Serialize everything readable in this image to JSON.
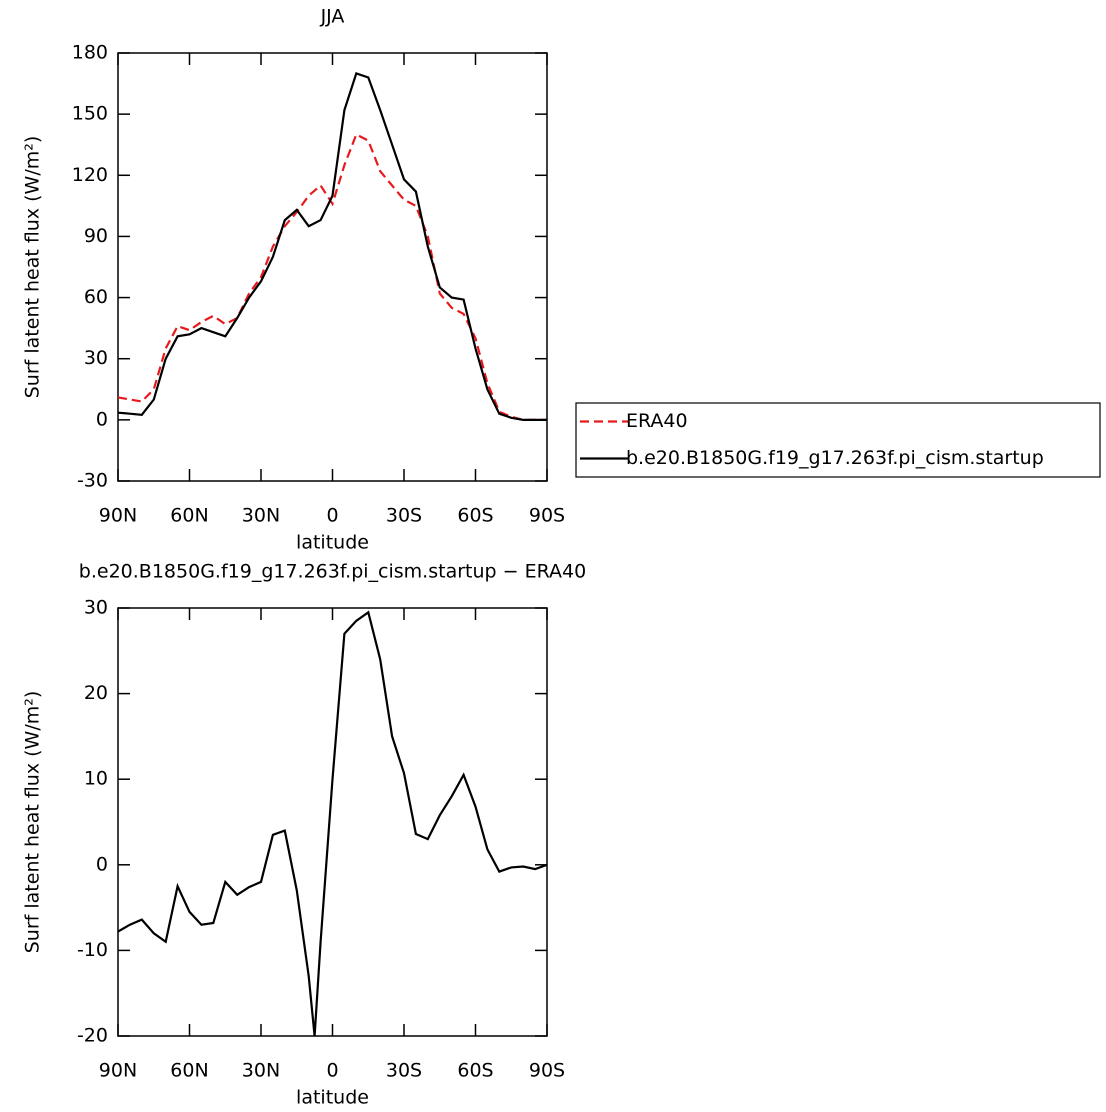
{
  "chart_data": [
    {
      "type": "line",
      "title": "JJA",
      "xlabel": "latitude",
      "ylabel": "Surf latent heat flux (W/m²)",
      "x": [
        90,
        85,
        80,
        75,
        70,
        65,
        60,
        55,
        50,
        45,
        40,
        35,
        30,
        25,
        20,
        15,
        10,
        5,
        0,
        -5,
        -10,
        -15,
        -20,
        -25,
        -30,
        -35,
        -40,
        -45,
        -50,
        -55,
        -60,
        -65,
        -70,
        -75,
        -80,
        -85,
        -90
      ],
      "series": [
        {
          "name": "ERA40",
          "color": "#e8191d",
          "dash": "dashed",
          "values": [
            11,
            10,
            9,
            15,
            35,
            46,
            44,
            48,
            51,
            47,
            50,
            62,
            70,
            85,
            95,
            102,
            110,
            115,
            106,
            125,
            140,
            137,
            122,
            115,
            108,
            105,
            90,
            62,
            55,
            52,
            40,
            18,
            4,
            1.5,
            0,
            0,
            0
          ]
        },
        {
          "name": "b.e20.B1850G.f19_g17.263f.pi_cism.startup",
          "color": "#000000",
          "dash": "solid",
          "values": [
            3.5,
            3,
            2.5,
            10,
            30,
            41,
            42,
            45,
            43,
            41,
            50,
            60,
            68,
            80,
            98,
            103,
            95,
            98,
            110,
            152,
            170,
            168,
            152,
            135,
            118,
            112,
            85,
            65,
            60,
            59,
            35,
            15,
            3,
            1,
            0,
            0,
            0
          ]
        }
      ],
      "xlim": [
        90,
        -90
      ],
      "xticks": [
        {
          "value": 90,
          "label": "90N"
        },
        {
          "value": 60,
          "label": "60N"
        },
        {
          "value": 30,
          "label": "30N"
        },
        0,
        {
          "value": -30,
          "label": "30S"
        },
        {
          "value": -60,
          "label": "60S"
        },
        {
          "value": -90,
          "label": "90S"
        }
      ],
      "ylim": [
        -30,
        180
      ],
      "yticks": [
        -30,
        0,
        30,
        60,
        90,
        120,
        150,
        180
      ],
      "legend": "right"
    },
    {
      "type": "line",
      "title": "b.e20.B1850G.f19_g17.263f.pi_cism.startup − ERA40",
      "xlabel": "latitude",
      "ylabel": "Surf latent heat flux (W/m²)",
      "x": [
        90,
        85,
        80,
        75,
        70,
        65,
        60,
        55,
        50,
        45,
        40,
        35,
        30,
        25,
        20,
        15,
        10,
        7.5,
        5,
        0,
        -5,
        -10,
        -15,
        -20,
        -25,
        -30,
        -35,
        -40,
        -45,
        -50,
        -55,
        -60,
        -65,
        -70,
        -75,
        -80,
        -85,
        -90
      ],
      "series": [
        {
          "color": "#000000",
          "dash": "solid",
          "values": [
            -7.8,
            -7,
            -6.4,
            -8,
            -9,
            -2.5,
            -5.5,
            -7,
            -6.8,
            -2,
            -3.5,
            -2.6,
            -2,
            3.5,
            4,
            -3,
            -13,
            -20,
            -9,
            10,
            27,
            28.5,
            29.5,
            24,
            15,
            10.7,
            3.6,
            3,
            5.8,
            8,
            10.5,
            6.8,
            1.8,
            -0.8,
            -0.3,
            -0.2,
            -0.5,
            0
          ]
        }
      ],
      "xlim": [
        90,
        -90
      ],
      "xticks": [
        {
          "value": 90,
          "label": "90N"
        },
        {
          "value": 60,
          "label": "60N"
        },
        {
          "value": 30,
          "label": "30N"
        },
        0,
        {
          "value": -30,
          "label": "30S"
        },
        {
          "value": -60,
          "label": "60S"
        },
        {
          "value": -90,
          "label": "90S"
        }
      ],
      "ylim": [
        -20,
        30
      ],
      "yticks": [
        -20,
        -10,
        0,
        10,
        20,
        30
      ]
    }
  ]
}
